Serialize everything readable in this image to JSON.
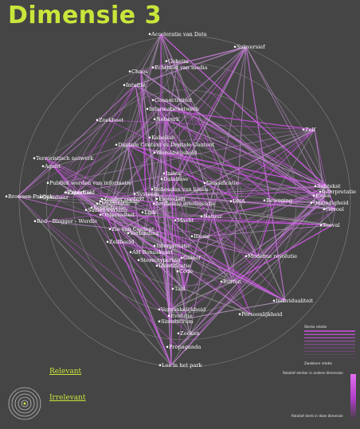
{
  "title": "Dimensie 3",
  "colors": {
    "background": "#454545",
    "title": "#c8e63a",
    "edge_strong": "#cf53e6",
    "edge_weak": "#b88cc6",
    "edge_gray": "#8e8e8e",
    "ring": "#9a9a9a",
    "label": "#ffffff"
  },
  "nodes": [
    {
      "id": "acc",
      "label": "Acceleratie van Data"
    },
    {
      "id": "sub",
      "label": "Subversief"
    },
    {
      "id": "geh",
      "label": "Geheim"
    },
    {
      "id": "ech",
      "label": "Echtheid van media"
    },
    {
      "id": "cha",
      "label": "Chaos"
    },
    {
      "id": "int",
      "label": "Intuïtie"
    },
    {
      "id": "con",
      "label": "Connectiviteit"
    },
    {
      "id": "inf",
      "label": "Informatienetwerk"
    },
    {
      "id": "net",
      "label": "Netwerk"
    },
    {
      "id": "zoe1",
      "label": "Zoekboot"
    },
    {
      "id": "kab",
      "label": "Kabellab"
    },
    {
      "id": "dig",
      "label": "Digitale Context vs Digitale Content"
    },
    {
      "id": "wer",
      "label": "Wereldwijsheid"
    },
    {
      "id": "zel",
      "label": "Zelf"
    },
    {
      "id": "ter",
      "label": "Terroristisch netwerk"
    },
    {
      "id": "age",
      "label": "Agent"
    },
    {
      "id": "ind",
      "label": "Index"
    },
    {
      "id": "dat",
      "label": "Database"
    },
    {
      "id": "pub",
      "label": "Publiek worden van informatie"
    },
    {
      "id": "cla",
      "label": "Classificatie"
    },
    {
      "id": "beh",
      "label": "Behouden van lijnen"
    },
    {
      "id": "subt",
      "label": "Subtekst"
    },
    {
      "id": "inte",
      "label": "Interpretatie"
    },
    {
      "id": "eig",
      "label": "Eigen"
    },
    {
      "id": "ons",
      "label": "Onzindigheid"
    },
    {
      "id": "bro",
      "label": "Browsen Publiek"
    },
    {
      "id": "ope",
      "label": "Openbaar"
    },
    {
      "id": "zek",
      "label": "Zekerheid"
    },
    {
      "id": "sys",
      "label": "Systeem"
    },
    {
      "id": "zon",
      "label": "Zonder context"
    },
    {
      "id": "org",
      "label": "Organisatie"
    },
    {
      "id": "eig2",
      "label": "Eigendom"
    },
    {
      "id": "dna",
      "label": "DNA"
    },
    {
      "id": "bew",
      "label": "Beweging"
    },
    {
      "id": "gev",
      "label": "Gevoel"
    },
    {
      "id": "rep",
      "label": "Reproductie"
    },
    {
      "id": "art",
      "label": "Artificiele intelligentie"
    },
    {
      "id": "toe",
      "label": "Toeval"
    },
    {
      "id": "obj",
      "label": "Objectiviteit"
    },
    {
      "id": "lin",
      "label": "Link"
    },
    {
      "id": "nat",
      "label": "Natuur"
    },
    {
      "id": "red",
      "label": "Red - Blogger - Wordle"
    },
    {
      "id": "mac",
      "label": "Macht"
    },
    {
      "id": "zio",
      "label": "Zio van Content"
    },
    {
      "id": "ver",
      "label": "Verbinding"
    },
    {
      "id": "ill",
      "label": "Illusie"
    },
    {
      "id": "zelfb",
      "label": "Zelfbeeld"
    },
    {
      "id": "int2",
      "label": "Interpretatie"
    },
    {
      "id": "ahb",
      "label": "AH Bonuskaart"
    },
    {
      "id": "str",
      "label": "Stereotypering"
    },
    {
      "id": "gel",
      "label": "Geloof"
    },
    {
      "id": "ide",
      "label": "Identificatie"
    },
    {
      "id": "mod",
      "label": "Moderne revolutie"
    },
    {
      "id": "cod",
      "label": "Code"
    },
    {
      "id": "taa",
      "label": "Taal"
    },
    {
      "id": "bur",
      "label": "Burfen"
    },
    {
      "id": "indiv",
      "label": "Individualiteit"
    },
    {
      "id": "ver2",
      "label": "Vergankelijkheid"
    },
    {
      "id": "evo",
      "label": "Evolutie"
    },
    {
      "id": "sim",
      "label": "Simulacrum"
    },
    {
      "id": "per",
      "label": "Persoonlijkheid"
    },
    {
      "id": "zoe2",
      "label": "Zoeken"
    },
    {
      "id": "pro",
      "label": "Propaganda"
    },
    {
      "id": "los",
      "label": "Los in het park"
    },
    {
      "id": "exp",
      "label": "Expertise"
    },
    {
      "id": "gem",
      "label": "Gemeenschap"
    },
    {
      "id": "sam",
      "label": "Samenwerking"
    }
  ],
  "legend": {
    "relevant": "Relevant",
    "irrelevant": "Irrelevant",
    "strong_relation": "Sterke relatie",
    "weak_relation": "Zwakkere relatie",
    "relative_strength_others": "Relatief sterker in andere dimensies",
    "relative_strength_this": "Relatief sterk in deze dimensie"
  }
}
